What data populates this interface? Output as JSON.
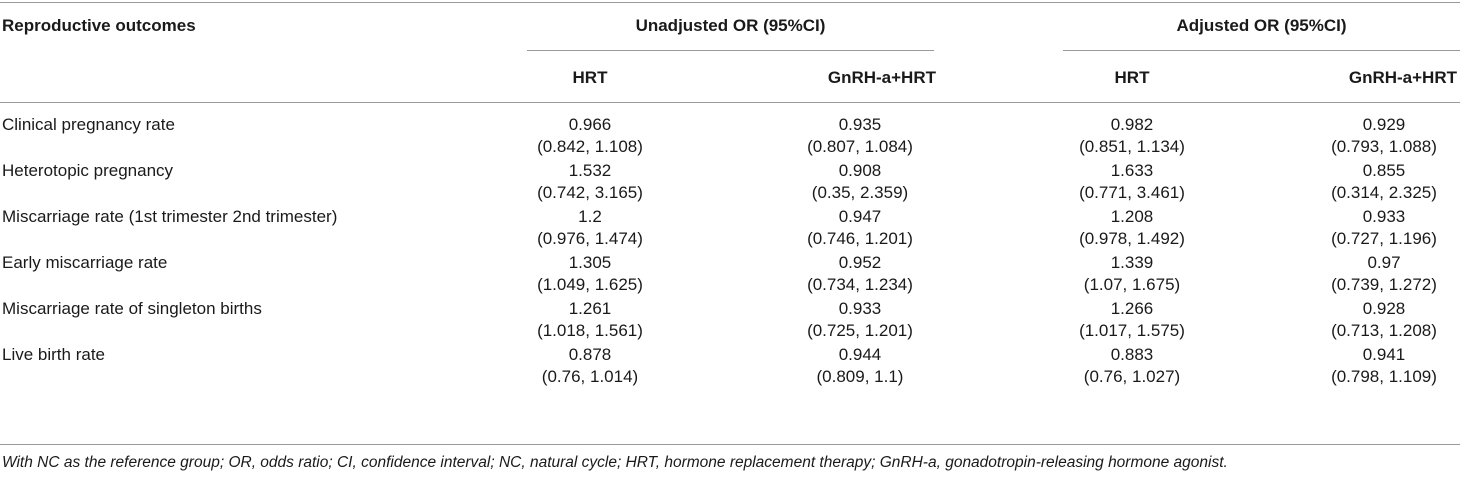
{
  "header": {
    "outcome_label": "Reproductive outcomes",
    "unadjusted_label": "Unadjusted OR (95%CI)",
    "adjusted_label": "Adjusted OR (95%CI)",
    "sub_hrt_1": "HRT",
    "sub_gnrh_1": "GnRH-a+HRT",
    "sub_hrt_2": "HRT",
    "sub_gnrh_2": "GnRH-a+HRT"
  },
  "rows": [
    {
      "outcome": "Clinical pregnancy rate",
      "u_hrt": "0.966",
      "u_hrt_ci": "(0.842, 1.108)",
      "u_gnrh": "0.935",
      "u_gnrh_ci": "(0.807, 1.084)",
      "a_hrt": "0.982",
      "a_hrt_ci": "(0.851, 1.134)",
      "a_gnrh": "0.929",
      "a_gnrh_ci": "(0.793, 1.088)"
    },
    {
      "outcome": "Heterotopic pregnancy",
      "u_hrt": "1.532",
      "u_hrt_ci": "(0.742, 3.165)",
      "u_gnrh": "0.908",
      "u_gnrh_ci": "(0.35, 2.359)",
      "a_hrt": "1.633",
      "a_hrt_ci": "(0.771, 3.461)",
      "a_gnrh": "0.855",
      "a_gnrh_ci": "(0.314, 2.325)"
    },
    {
      "outcome": "Miscarriage rate (1st trimester 2nd trimester)",
      "u_hrt": "1.2",
      "u_hrt_ci": "(0.976, 1.474)",
      "u_gnrh": "0.947",
      "u_gnrh_ci": "(0.746, 1.201)",
      "a_hrt": "1.208",
      "a_hrt_ci": "(0.978, 1.492)",
      "a_gnrh": "0.933",
      "a_gnrh_ci": "(0.727, 1.196)"
    },
    {
      "outcome": "Early miscarriage rate",
      "u_hrt": "1.305",
      "u_hrt_ci": "(1.049, 1.625)",
      "u_gnrh": "0.952",
      "u_gnrh_ci": "(0.734, 1.234)",
      "a_hrt": "1.339",
      "a_hrt_ci": "(1.07, 1.675)",
      "a_gnrh": "0.97",
      "a_gnrh_ci": "(0.739, 1.272)"
    },
    {
      "outcome": "Miscarriage rate of singleton births",
      "u_hrt": "1.261",
      "u_hrt_ci": "(1.018, 1.561)",
      "u_gnrh": "0.933",
      "u_gnrh_ci": "(0.725, 1.201)",
      "a_hrt": "1.266",
      "a_hrt_ci": "(1.017, 1.575)",
      "a_gnrh": "0.928",
      "a_gnrh_ci": "(0.713, 1.208)"
    },
    {
      "outcome": "Live birth rate",
      "u_hrt": "0.878",
      "u_hrt_ci": "(0.76, 1.014)",
      "u_gnrh": "0.944",
      "u_gnrh_ci": "(0.809, 1.1)",
      "a_hrt": "0.883",
      "a_hrt_ci": "(0.76, 1.027)",
      "a_gnrh": "0.941",
      "a_gnrh_ci": "(0.798, 1.109)"
    }
  ],
  "footnote": "With NC as the reference group; OR, odds ratio; CI, confidence interval; NC, natural cycle; HRT, hormone replacement therapy; GnRH-a, gonadotropin-releasing hormone agonist."
}
